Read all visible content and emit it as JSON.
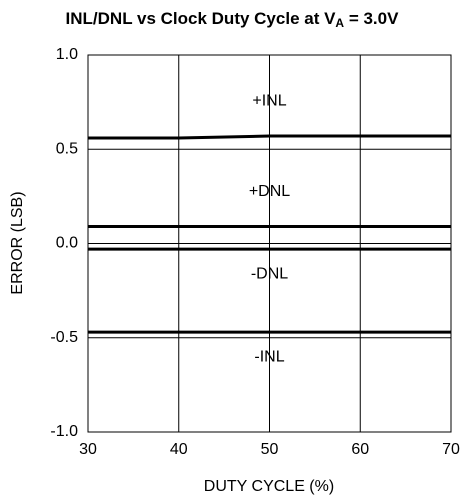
{
  "chart_data": {
    "type": "line",
    "title": [
      "INL/DNL vs Clock Duty Cycle at V",
      "A",
      " = 3.0V"
    ],
    "x_label": "DUTY CYCLE (%)",
    "y_label": "ERROR (LSB)",
    "x": [
      30,
      40,
      50,
      60,
      70
    ],
    "series": [
      {
        "name": "+INL",
        "color": "#000000",
        "values": [
          0.56,
          0.56,
          0.57,
          0.57,
          0.57
        ]
      },
      {
        "name": "+DNL",
        "color": "#000000",
        "values": [
          0.09,
          0.09,
          0.09,
          0.09,
          0.09
        ]
      },
      {
        "name": "-DNL",
        "color": "#000000",
        "values": [
          -0.03,
          -0.03,
          -0.03,
          -0.03,
          -0.03
        ]
      },
      {
        "name": "-INL",
        "color": "#000000",
        "values": [
          -0.47,
          -0.47,
          -0.47,
          -0.47,
          -0.47
        ]
      }
    ],
    "xlim": [
      30,
      70
    ],
    "xticks": [
      30,
      40,
      50,
      60,
      70
    ],
    "ylim": [
      -1,
      1
    ],
    "yticks": [
      {
        "value": -1,
        "label": "-1.0"
      },
      {
        "value": -0.5,
        "label": "-0.5"
      },
      {
        "value": 0,
        "label": "0.0"
      },
      {
        "value": 0.5,
        "label": "0.5"
      },
      {
        "value": 1,
        "label": "1.0"
      }
    ],
    "grid": true
  }
}
